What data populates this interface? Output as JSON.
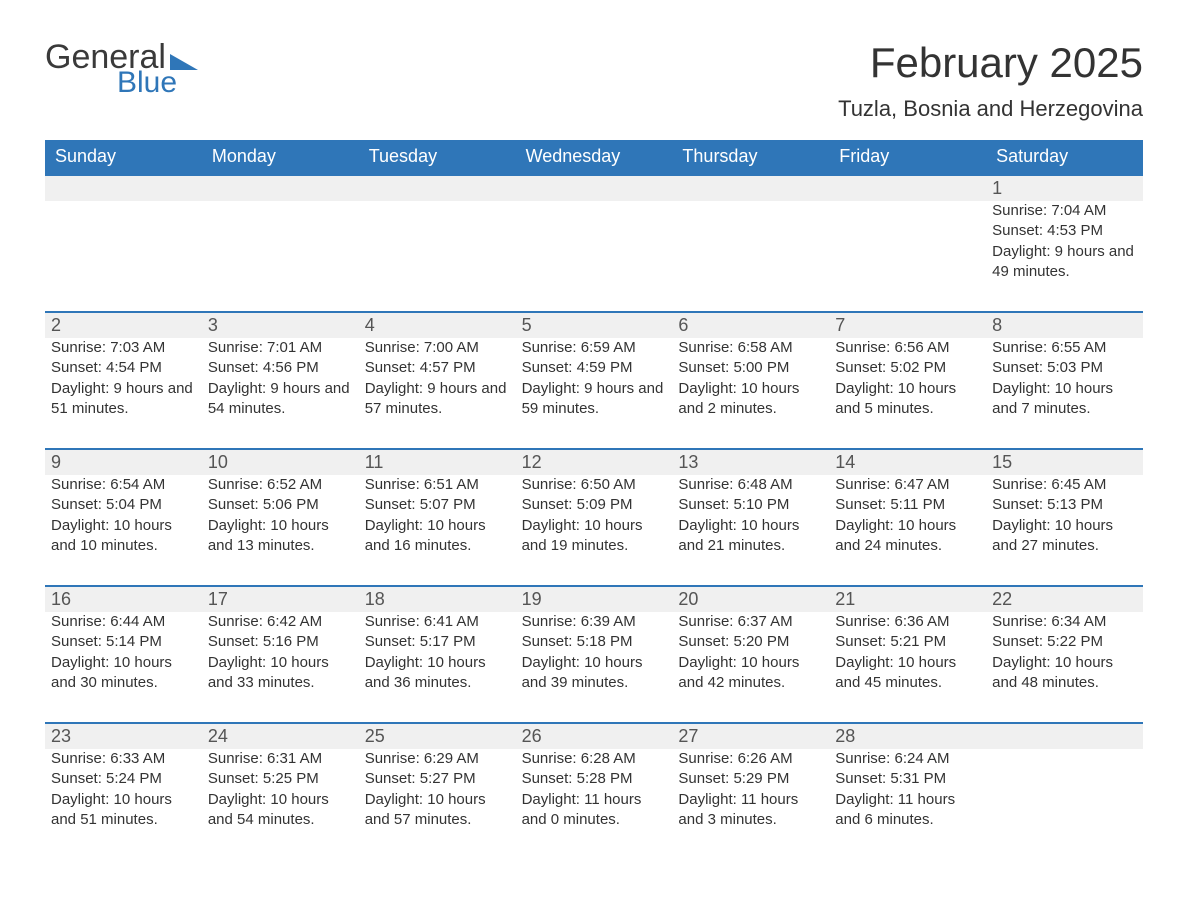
{
  "logo": {
    "text1": "General",
    "text2": "Blue",
    "tri_color": "#2f76b8"
  },
  "header": {
    "month_title": "February 2025",
    "location": "Tuzla, Bosnia and Herzegovina"
  },
  "colors": {
    "header_bg": "#2f76b8",
    "header_text": "#ffffff",
    "strip_bg": "#f0f0f0",
    "strip_border": "#2f76b8",
    "body_text": "#333333",
    "page_bg": "#ffffff"
  },
  "calendar": {
    "weekdays": [
      "Sunday",
      "Monday",
      "Tuesday",
      "Wednesday",
      "Thursday",
      "Friday",
      "Saturday"
    ],
    "blanks_before": 6,
    "blanks_after": 1,
    "days": [
      {
        "n": 1,
        "sunrise": "7:04 AM",
        "sunset": "4:53 PM",
        "dl_h": 9,
        "dl_m": 49
      },
      {
        "n": 2,
        "sunrise": "7:03 AM",
        "sunset": "4:54 PM",
        "dl_h": 9,
        "dl_m": 51
      },
      {
        "n": 3,
        "sunrise": "7:01 AM",
        "sunset": "4:56 PM",
        "dl_h": 9,
        "dl_m": 54
      },
      {
        "n": 4,
        "sunrise": "7:00 AM",
        "sunset": "4:57 PM",
        "dl_h": 9,
        "dl_m": 57
      },
      {
        "n": 5,
        "sunrise": "6:59 AM",
        "sunset": "4:59 PM",
        "dl_h": 9,
        "dl_m": 59
      },
      {
        "n": 6,
        "sunrise": "6:58 AM",
        "sunset": "5:00 PM",
        "dl_h": 10,
        "dl_m": 2
      },
      {
        "n": 7,
        "sunrise": "6:56 AM",
        "sunset": "5:02 PM",
        "dl_h": 10,
        "dl_m": 5
      },
      {
        "n": 8,
        "sunrise": "6:55 AM",
        "sunset": "5:03 PM",
        "dl_h": 10,
        "dl_m": 7
      },
      {
        "n": 9,
        "sunrise": "6:54 AM",
        "sunset": "5:04 PM",
        "dl_h": 10,
        "dl_m": 10
      },
      {
        "n": 10,
        "sunrise": "6:52 AM",
        "sunset": "5:06 PM",
        "dl_h": 10,
        "dl_m": 13
      },
      {
        "n": 11,
        "sunrise": "6:51 AM",
        "sunset": "5:07 PM",
        "dl_h": 10,
        "dl_m": 16
      },
      {
        "n": 12,
        "sunrise": "6:50 AM",
        "sunset": "5:09 PM",
        "dl_h": 10,
        "dl_m": 19
      },
      {
        "n": 13,
        "sunrise": "6:48 AM",
        "sunset": "5:10 PM",
        "dl_h": 10,
        "dl_m": 21
      },
      {
        "n": 14,
        "sunrise": "6:47 AM",
        "sunset": "5:11 PM",
        "dl_h": 10,
        "dl_m": 24
      },
      {
        "n": 15,
        "sunrise": "6:45 AM",
        "sunset": "5:13 PM",
        "dl_h": 10,
        "dl_m": 27
      },
      {
        "n": 16,
        "sunrise": "6:44 AM",
        "sunset": "5:14 PM",
        "dl_h": 10,
        "dl_m": 30
      },
      {
        "n": 17,
        "sunrise": "6:42 AM",
        "sunset": "5:16 PM",
        "dl_h": 10,
        "dl_m": 33
      },
      {
        "n": 18,
        "sunrise": "6:41 AM",
        "sunset": "5:17 PM",
        "dl_h": 10,
        "dl_m": 36
      },
      {
        "n": 19,
        "sunrise": "6:39 AM",
        "sunset": "5:18 PM",
        "dl_h": 10,
        "dl_m": 39
      },
      {
        "n": 20,
        "sunrise": "6:37 AM",
        "sunset": "5:20 PM",
        "dl_h": 10,
        "dl_m": 42
      },
      {
        "n": 21,
        "sunrise": "6:36 AM",
        "sunset": "5:21 PM",
        "dl_h": 10,
        "dl_m": 45
      },
      {
        "n": 22,
        "sunrise": "6:34 AM",
        "sunset": "5:22 PM",
        "dl_h": 10,
        "dl_m": 48
      },
      {
        "n": 23,
        "sunrise": "6:33 AM",
        "sunset": "5:24 PM",
        "dl_h": 10,
        "dl_m": 51
      },
      {
        "n": 24,
        "sunrise": "6:31 AM",
        "sunset": "5:25 PM",
        "dl_h": 10,
        "dl_m": 54
      },
      {
        "n": 25,
        "sunrise": "6:29 AM",
        "sunset": "5:27 PM",
        "dl_h": 10,
        "dl_m": 57
      },
      {
        "n": 26,
        "sunrise": "6:28 AM",
        "sunset": "5:28 PM",
        "dl_h": 11,
        "dl_m": 0
      },
      {
        "n": 27,
        "sunrise": "6:26 AM",
        "sunset": "5:29 PM",
        "dl_h": 11,
        "dl_m": 3
      },
      {
        "n": 28,
        "sunrise": "6:24 AM",
        "sunset": "5:31 PM",
        "dl_h": 11,
        "dl_m": 6
      }
    ]
  },
  "labels": {
    "sunrise_prefix": "Sunrise: ",
    "sunset_prefix": "Sunset: ",
    "daylight_tpl": "Daylight: {h} hours and {m} minutes."
  }
}
